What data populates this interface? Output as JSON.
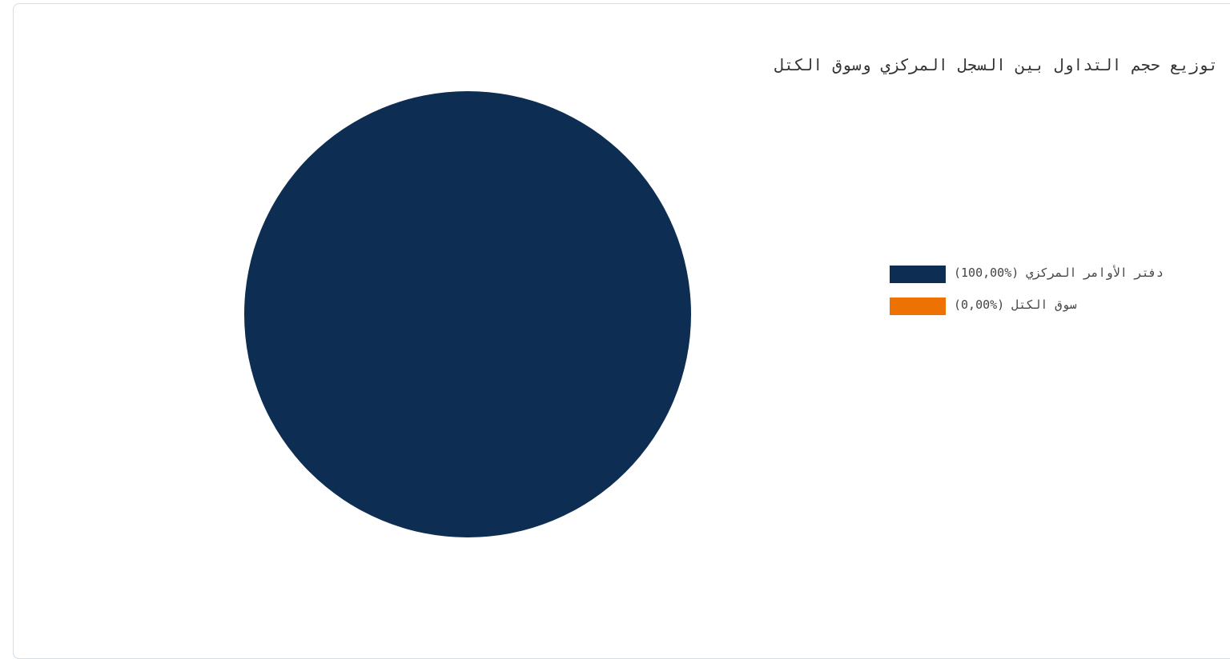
{
  "chart_data": {
    "type": "pie",
    "title": "توزيع حجم التداول بين السجل المركزي وسوق الكتل",
    "slices": [
      {
        "label": "دفتر الأوامر المركزي (%100,00)",
        "value": 100,
        "color": "#0d2d52"
      },
      {
        "label": "سوق الكتل (%0,00)",
        "value": 0,
        "color": "#ee7203"
      }
    ],
    "legend_position": "right"
  }
}
